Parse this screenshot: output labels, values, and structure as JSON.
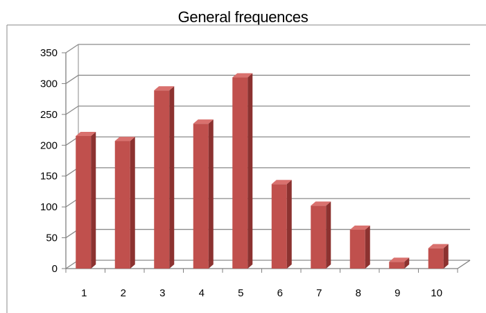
{
  "chart_data": {
    "type": "bar",
    "title": "General frequences",
    "xlabel": "",
    "ylabel": "",
    "categories": [
      "1",
      "2",
      "3",
      "4",
      "5",
      "6",
      "7",
      "8",
      "9",
      "10"
    ],
    "values": [
      215,
      207,
      289,
      235,
      310,
      137,
      102,
      63,
      11,
      33
    ],
    "ylim": [
      0,
      350
    ],
    "yticks": [
      0,
      50,
      100,
      150,
      200,
      250,
      300,
      350
    ],
    "grid": true,
    "legend": "none",
    "style": "3d-column",
    "colors": {
      "bar_front": "#C0504D",
      "bar_side": "#8C3230",
      "bar_top": "#D9716E",
      "grid": "#8a8a8a"
    }
  }
}
